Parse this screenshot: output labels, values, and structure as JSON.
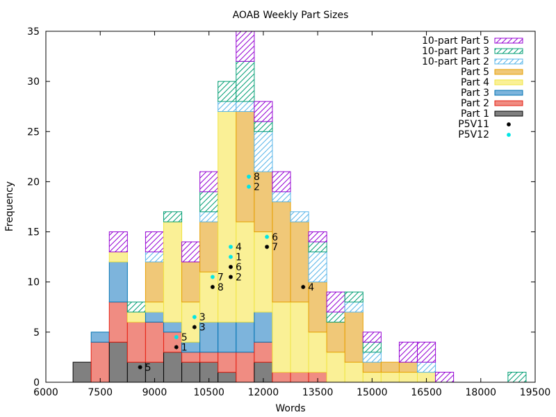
{
  "chart_data": {
    "type": "bar",
    "title": "AOAB Weekly Part Sizes",
    "xlabel": "Words",
    "ylabel": "Frequency",
    "xlim": [
      6000,
      19500
    ],
    "ylim": [
      0,
      35
    ],
    "xticks": [
      6000,
      7500,
      9000,
      10500,
      12000,
      13500,
      15000,
      16500,
      18000,
      19500
    ],
    "yticks": [
      0,
      5,
      10,
      15,
      20,
      25,
      30,
      35
    ],
    "bin_width": 500,
    "stacked": true,
    "grid": false,
    "legend_position": "top-right",
    "bins": [
      {
        "x": 7000,
        "parts": [
          0,
          0,
          0,
          0,
          0,
          0,
          0,
          2
        ]
      },
      {
        "x": 7500,
        "parts": [
          0,
          0,
          0,
          0,
          0,
          1,
          4,
          0
        ]
      },
      {
        "x": 8000,
        "parts": [
          2,
          0,
          0,
          0,
          1,
          4,
          4,
          4
        ]
      },
      {
        "x": 8500,
        "parts": [
          0,
          1,
          0,
          0,
          1,
          0,
          4,
          2
        ]
      },
      {
        "x": 9000,
        "parts": [
          2,
          0,
          1,
          4,
          1,
          1,
          4,
          2
        ]
      },
      {
        "x": 9500,
        "parts": [
          0,
          1,
          0,
          0,
          10,
          1,
          2,
          3
        ]
      },
      {
        "x": 10000,
        "parts": [
          2,
          0,
          0,
          4,
          4,
          1,
          1,
          2
        ]
      },
      {
        "x": 10500,
        "parts": [
          2,
          2,
          1,
          5,
          5,
          3,
          1,
          2
        ]
      },
      {
        "x": 11000,
        "parts": [
          0,
          2,
          1,
          0,
          21,
          3,
          2,
          1
        ]
      },
      {
        "x": 11500,
        "parts": [
          3,
          4,
          1,
          11,
          10,
          3,
          3,
          0
        ]
      },
      {
        "x": 12000,
        "parts": [
          2,
          1,
          4,
          6,
          8,
          3,
          2,
          2
        ]
      },
      {
        "x": 12500,
        "parts": [
          2,
          0,
          1,
          10,
          7,
          0,
          1,
          0
        ]
      },
      {
        "x": 13000,
        "parts": [
          0,
          0,
          1,
          8,
          7,
          0,
          1,
          0
        ]
      },
      {
        "x": 13500,
        "parts": [
          1,
          1,
          3,
          5,
          4,
          0,
          1,
          0
        ]
      },
      {
        "x": 14000,
        "parts": [
          2,
          1,
          0,
          3,
          3,
          0,
          0,
          0
        ]
      },
      {
        "x": 14500,
        "parts": [
          0,
          1,
          1,
          5,
          2,
          0,
          0,
          0
        ]
      },
      {
        "x": 15000,
        "parts": [
          1,
          1,
          1,
          1,
          1,
          0,
          0,
          0
        ]
      },
      {
        "x": 15500,
        "parts": [
          0,
          0,
          0,
          1,
          1,
          0,
          0,
          0
        ]
      },
      {
        "x": 16000,
        "parts": [
          2,
          0,
          0,
          1,
          1,
          0,
          0,
          0
        ]
      },
      {
        "x": 16500,
        "parts": [
          2,
          0,
          1,
          0,
          1,
          0,
          0,
          0
        ]
      },
      {
        "x": 17000,
        "parts": [
          1,
          0,
          0,
          0,
          0,
          0,
          0,
          0
        ]
      },
      {
        "x": 19000,
        "parts": [
          0,
          1,
          0,
          0,
          0,
          0,
          0,
          0
        ]
      }
    ],
    "series": [
      {
        "name": "10-part Part 5",
        "style": "hatch",
        "color": "#9400d3"
      },
      {
        "name": "10-part Part 3",
        "style": "hatch",
        "color": "#009e73"
      },
      {
        "name": "10-part Part 2",
        "style": "hatch",
        "color": "#56b4e9"
      },
      {
        "name": "Part 5",
        "style": "solid",
        "color": "#f0c878",
        "edge": "#e69f00"
      },
      {
        "name": "Part 4",
        "style": "solid",
        "color": "#faf096",
        "edge": "#f0e442"
      },
      {
        "name": "Part 3",
        "style": "solid",
        "color": "#7db4dc",
        "edge": "#0072b2"
      },
      {
        "name": "Part 2",
        "style": "solid",
        "color": "#f08c82",
        "edge": "#e51e10"
      },
      {
        "name": "Part 1",
        "style": "solid",
        "color": "#808080",
        "edge": "#000000"
      }
    ],
    "stack_order": [
      "Part 1",
      "Part 2",
      "Part 3",
      "Part 4",
      "Part 5",
      "10-part Part 2",
      "10-part Part 3",
      "10-part Part 5"
    ],
    "points": [
      {
        "series": "P5V11",
        "color": "#000000",
        "data": [
          {
            "x": 8600,
            "y": 1.5,
            "label": "5"
          },
          {
            "x": 9600,
            "y": 3.5,
            "label": "1"
          },
          {
            "x": 10100,
            "y": 5.5,
            "label": "3"
          },
          {
            "x": 10600,
            "y": 9.5,
            "label": "8"
          },
          {
            "x": 11100,
            "y": 10.5,
            "label": "2"
          },
          {
            "x": 11100,
            "y": 11.5,
            "label": "6"
          },
          {
            "x": 12100,
            "y": 13.5,
            "label": "7"
          },
          {
            "x": 13100,
            "y": 9.5,
            "label": "4"
          }
        ]
      },
      {
        "series": "P5V12",
        "color": "#00e5e5",
        "data": [
          {
            "x": 9600,
            "y": 4.5,
            "label": "5"
          },
          {
            "x": 10100,
            "y": 6.5,
            "label": "3"
          },
          {
            "x": 10600,
            "y": 10.5,
            "label": "7"
          },
          {
            "x": 11100,
            "y": 12.5,
            "label": "1"
          },
          {
            "x": 11100,
            "y": 13.5,
            "label": "4"
          },
          {
            "x": 11600,
            "y": 19.5,
            "label": "2"
          },
          {
            "x": 11600,
            "y": 20.5,
            "label": "8"
          },
          {
            "x": 12100,
            "y": 14.5,
            "label": "6"
          }
        ]
      }
    ]
  }
}
